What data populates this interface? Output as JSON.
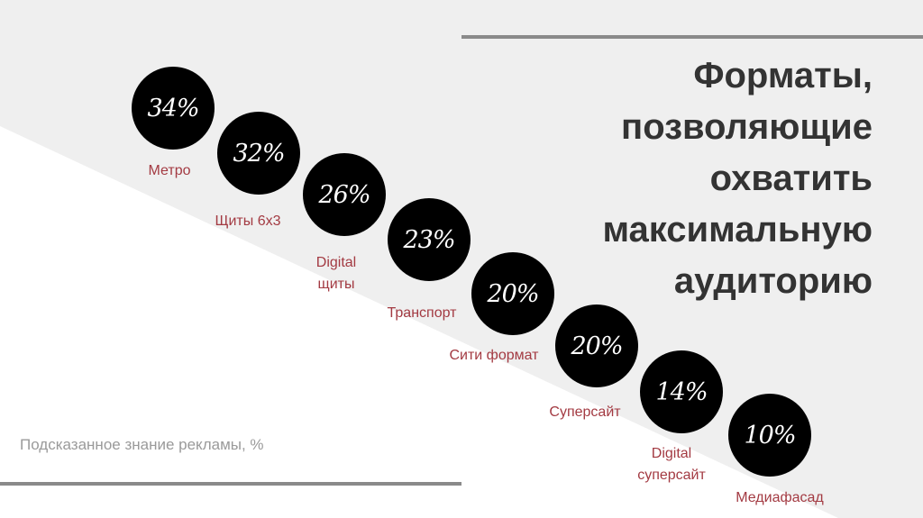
{
  "title_lines": [
    "Форматы,",
    "позволяющие",
    "охватить",
    "максимальную",
    "аудиторию"
  ],
  "items": [
    {
      "value": "34%",
      "label": "Метро"
    },
    {
      "value": "32%",
      "label": "Щиты 6х3"
    },
    {
      "value": "26%",
      "label_lines": [
        "Digital",
        "щиты"
      ]
    },
    {
      "value": "23%",
      "label": "Транспорт"
    },
    {
      "value": "20%",
      "label": "Сити формат"
    },
    {
      "value": "20%",
      "label": "Суперсайт"
    },
    {
      "value": "14%",
      "label_lines": [
        "Digital",
        "суперсайт"
      ]
    },
    {
      "value": "10%",
      "label": "Медиафасад"
    }
  ],
  "footnote": "Подсказанное знание рекламы, %",
  "colors": {
    "label": "#a33a42",
    "background_shape": "#efefef",
    "rule": "#8a8a8a",
    "circle": "#000000",
    "title": "#333333"
  }
}
